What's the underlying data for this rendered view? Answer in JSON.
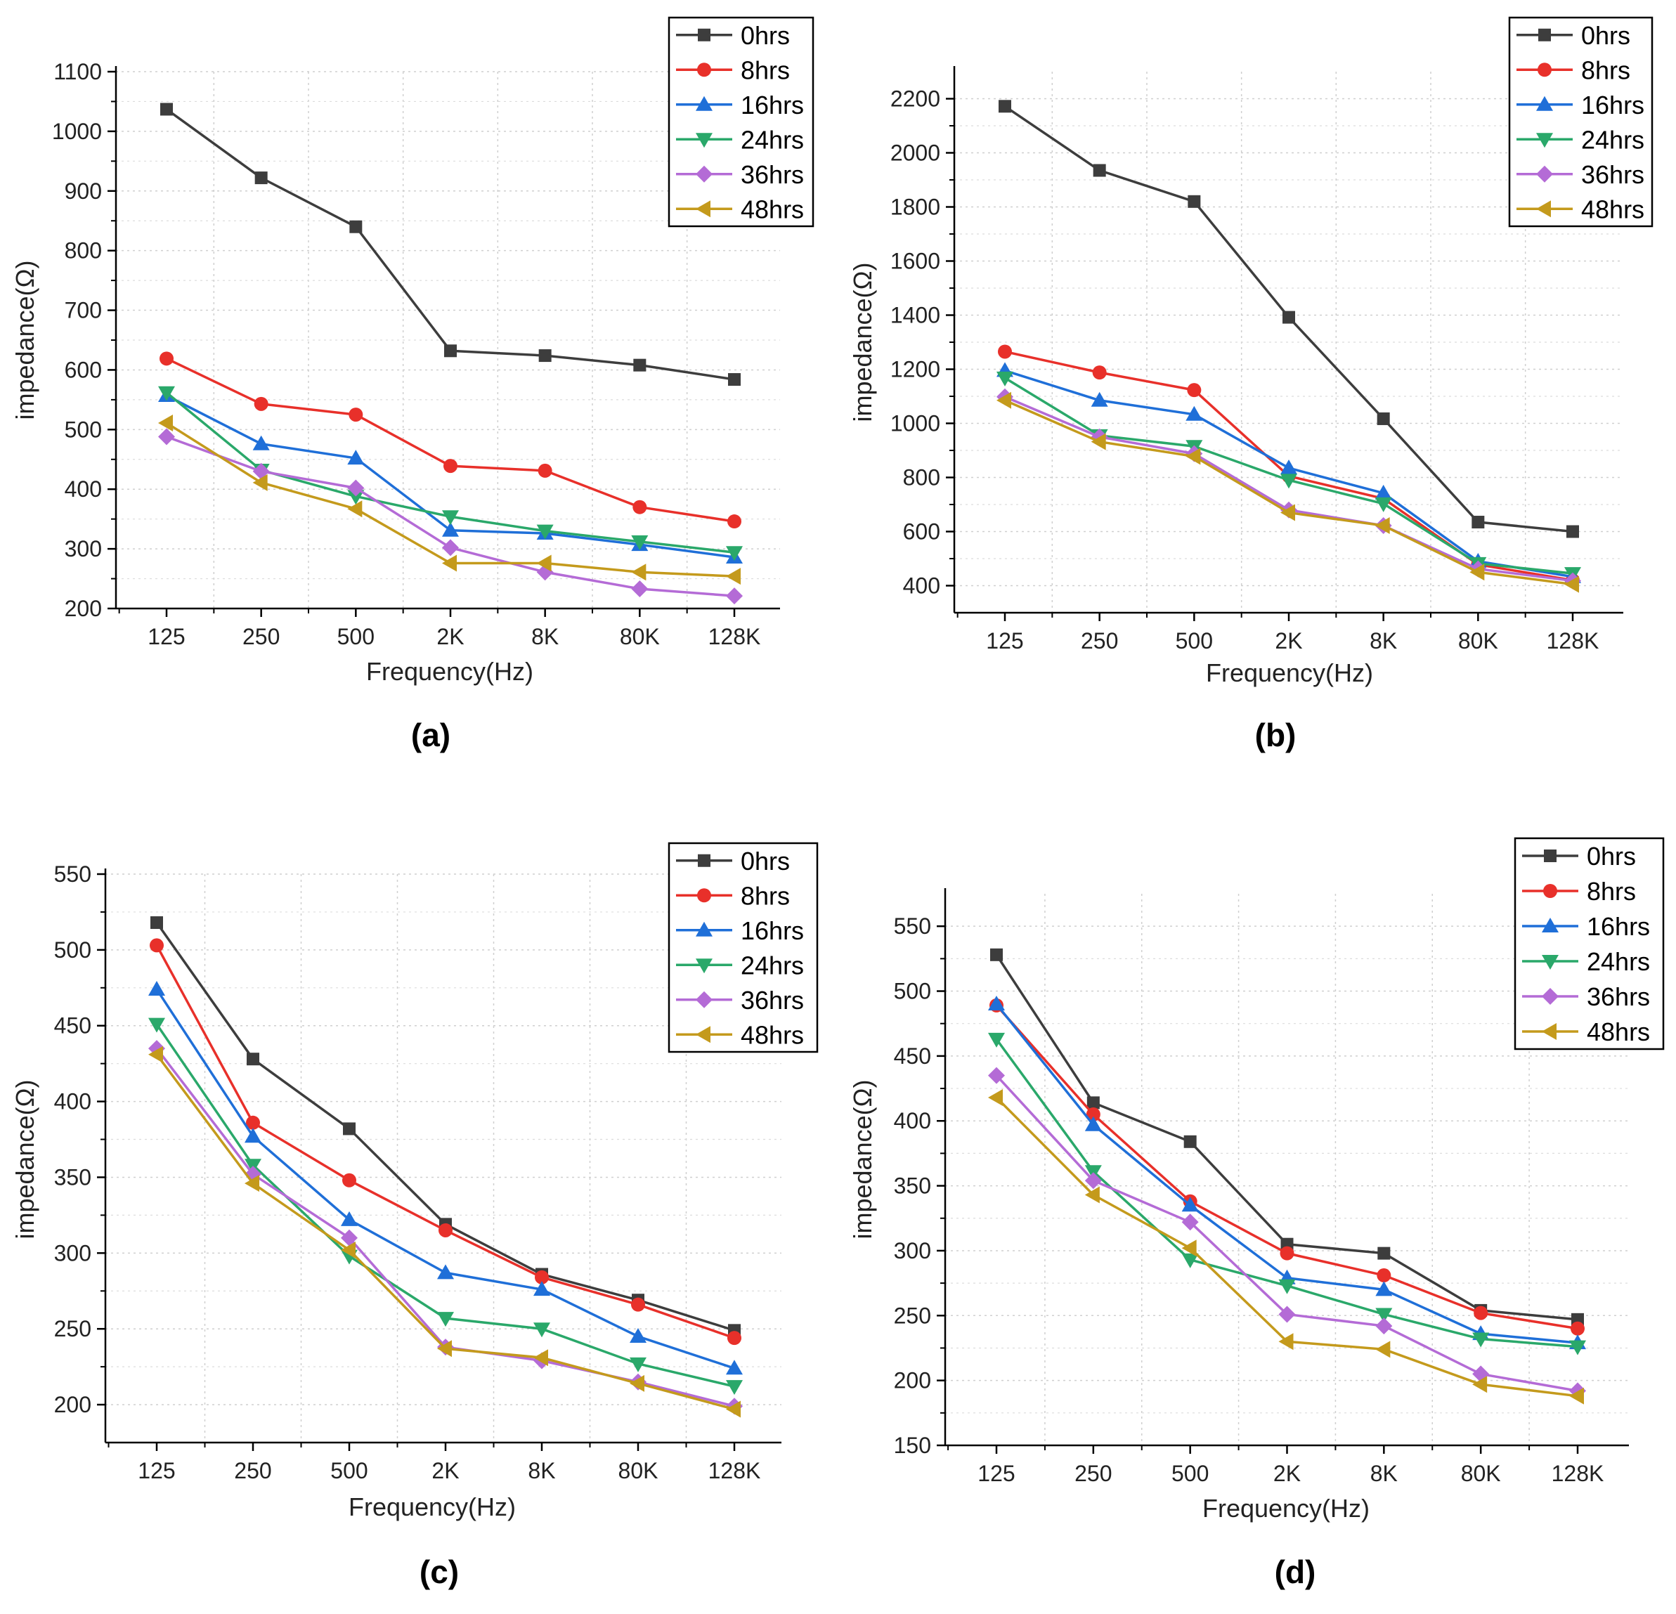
{
  "chart_data": [
    {
      "type": "line",
      "panel_label": "(a)",
      "xlabel": "Frequency(Hz)",
      "ylabel": "impedance(Ω)",
      "categories": [
        "125",
        "250",
        "500",
        "2K",
        "8K",
        "80K",
        "128K"
      ],
      "ylim": [
        200,
        1100
      ],
      "yticks": [
        200,
        300,
        400,
        500,
        600,
        700,
        800,
        900,
        1000,
        1100
      ],
      "grid": true,
      "legend_position": "top-right",
      "series": [
        {
          "name": "0hrs",
          "color": "#3d3d3d",
          "marker": "square",
          "values": [
            1037,
            922,
            840,
            632,
            624,
            608,
            584
          ]
        },
        {
          "name": "8hrs",
          "color": "#e8302a",
          "marker": "circle",
          "values": [
            619,
            543,
            525,
            439,
            431,
            370,
            346
          ]
        },
        {
          "name": "16hrs",
          "color": "#1f6fd8",
          "marker": "triangle-up",
          "values": [
            557,
            476,
            452,
            331,
            326,
            307,
            286
          ]
        },
        {
          "name": "24hrs",
          "color": "#2aa86a",
          "marker": "triangle-down",
          "values": [
            562,
            432,
            388,
            354,
            330,
            312,
            294
          ]
        },
        {
          "name": "36hrs",
          "color": "#b46bd6",
          "marker": "diamond",
          "values": [
            488,
            430,
            402,
            302,
            261,
            233,
            221
          ]
        },
        {
          "name": "48hrs",
          "color": "#c49a1c",
          "marker": "triangle-left",
          "values": [
            511,
            411,
            367,
            276,
            276,
            261,
            254
          ]
        }
      ]
    },
    {
      "type": "line",
      "panel_label": "(b)",
      "xlabel": "Frequency(Hz)",
      "ylabel": "impedance(Ω)",
      "categories": [
        "125",
        "250",
        "500",
        "2K",
        "8K",
        "80K",
        "128K"
      ],
      "ylim": [
        300,
        2300
      ],
      "yticks": [
        400,
        600,
        800,
        1000,
        1200,
        1400,
        1600,
        1800,
        2000,
        2200
      ],
      "grid": true,
      "legend_position": "top-right",
      "series": [
        {
          "name": "0hrs",
          "color": "#3d3d3d",
          "marker": "square",
          "values": [
            2172,
            1935,
            1820,
            1392,
            1017,
            635,
            600
          ]
        },
        {
          "name": "8hrs",
          "color": "#e8302a",
          "marker": "circle",
          "values": [
            1265,
            1188,
            1123,
            805,
            722,
            478,
            420
          ]
        },
        {
          "name": "16hrs",
          "color": "#1f6fd8",
          "marker": "triangle-up",
          "values": [
            1195,
            1085,
            1033,
            835,
            742,
            490,
            433
          ]
        },
        {
          "name": "24hrs",
          "color": "#2aa86a",
          "marker": "triangle-down",
          "values": [
            1168,
            955,
            915,
            790,
            703,
            482,
            445
          ]
        },
        {
          "name": "36hrs",
          "color": "#b46bd6",
          "marker": "diamond",
          "values": [
            1098,
            950,
            888,
            680,
            622,
            462,
            418
          ]
        },
        {
          "name": "48hrs",
          "color": "#c49a1c",
          "marker": "triangle-left",
          "values": [
            1085,
            932,
            878,
            670,
            622,
            450,
            405
          ]
        }
      ]
    },
    {
      "type": "line",
      "panel_label": "(c)",
      "xlabel": "Frequency(Hz)",
      "ylabel": "impedance(Ω)",
      "categories": [
        "125",
        "250",
        "500",
        "2K",
        "8K",
        "80K",
        "128K"
      ],
      "ylim": [
        175,
        550
      ],
      "yticks": [
        200,
        250,
        300,
        350,
        400,
        450,
        500,
        550
      ],
      "grid": true,
      "legend_position": "top-right",
      "series": [
        {
          "name": "0hrs",
          "color": "#3d3d3d",
          "marker": "square",
          "values": [
            518,
            428,
            382,
            319,
            286,
            269,
            249
          ]
        },
        {
          "name": "8hrs",
          "color": "#e8302a",
          "marker": "circle",
          "values": [
            503,
            386,
            348,
            315,
            284,
            266,
            244
          ]
        },
        {
          "name": "16hrs",
          "color": "#1f6fd8",
          "marker": "triangle-up",
          "values": [
            474,
            377,
            322,
            287,
            276,
            245,
            224
          ]
        },
        {
          "name": "24hrs",
          "color": "#2aa86a",
          "marker": "triangle-down",
          "values": [
            451,
            358,
            298,
            257,
            250,
            227,
            212
          ]
        },
        {
          "name": "36hrs",
          "color": "#b46bd6",
          "marker": "diamond",
          "values": [
            435,
            352,
            310,
            238,
            229,
            215,
            199
          ]
        },
        {
          "name": "48hrs",
          "color": "#c49a1c",
          "marker": "triangle-left",
          "values": [
            431,
            346,
            302,
            237,
            231,
            214,
            197
          ]
        }
      ]
    },
    {
      "type": "line",
      "panel_label": "(d)",
      "xlabel": "Frequency(Hz)",
      "ylabel": "impedance(Ω)",
      "categories": [
        "125",
        "250",
        "500",
        "2K",
        "8K",
        "80K",
        "128K"
      ],
      "ylim": [
        150,
        575
      ],
      "yticks": [
        150,
        200,
        250,
        300,
        350,
        400,
        450,
        500,
        550
      ],
      "grid": true,
      "legend_position": "top-right",
      "series": [
        {
          "name": "0hrs",
          "color": "#3d3d3d",
          "marker": "square",
          "values": [
            528,
            414,
            384,
            305,
            298,
            254,
            247
          ]
        },
        {
          "name": "8hrs",
          "color": "#e8302a",
          "marker": "circle",
          "values": [
            489,
            405,
            338,
            298,
            281,
            252,
            240
          ]
        },
        {
          "name": "16hrs",
          "color": "#1f6fd8",
          "marker": "triangle-up",
          "values": [
            490,
            397,
            335,
            279,
            270,
            236,
            229
          ]
        },
        {
          "name": "24hrs",
          "color": "#2aa86a",
          "marker": "triangle-down",
          "values": [
            463,
            361,
            293,
            273,
            251,
            232,
            226
          ]
        },
        {
          "name": "36hrs",
          "color": "#b46bd6",
          "marker": "diamond",
          "values": [
            435,
            354,
            322,
            251,
            242,
            205,
            192
          ]
        },
        {
          "name": "48hrs",
          "color": "#c49a1c",
          "marker": "triangle-left",
          "values": [
            418,
            343,
            302,
            230,
            224,
            197,
            188
          ]
        }
      ]
    }
  ]
}
